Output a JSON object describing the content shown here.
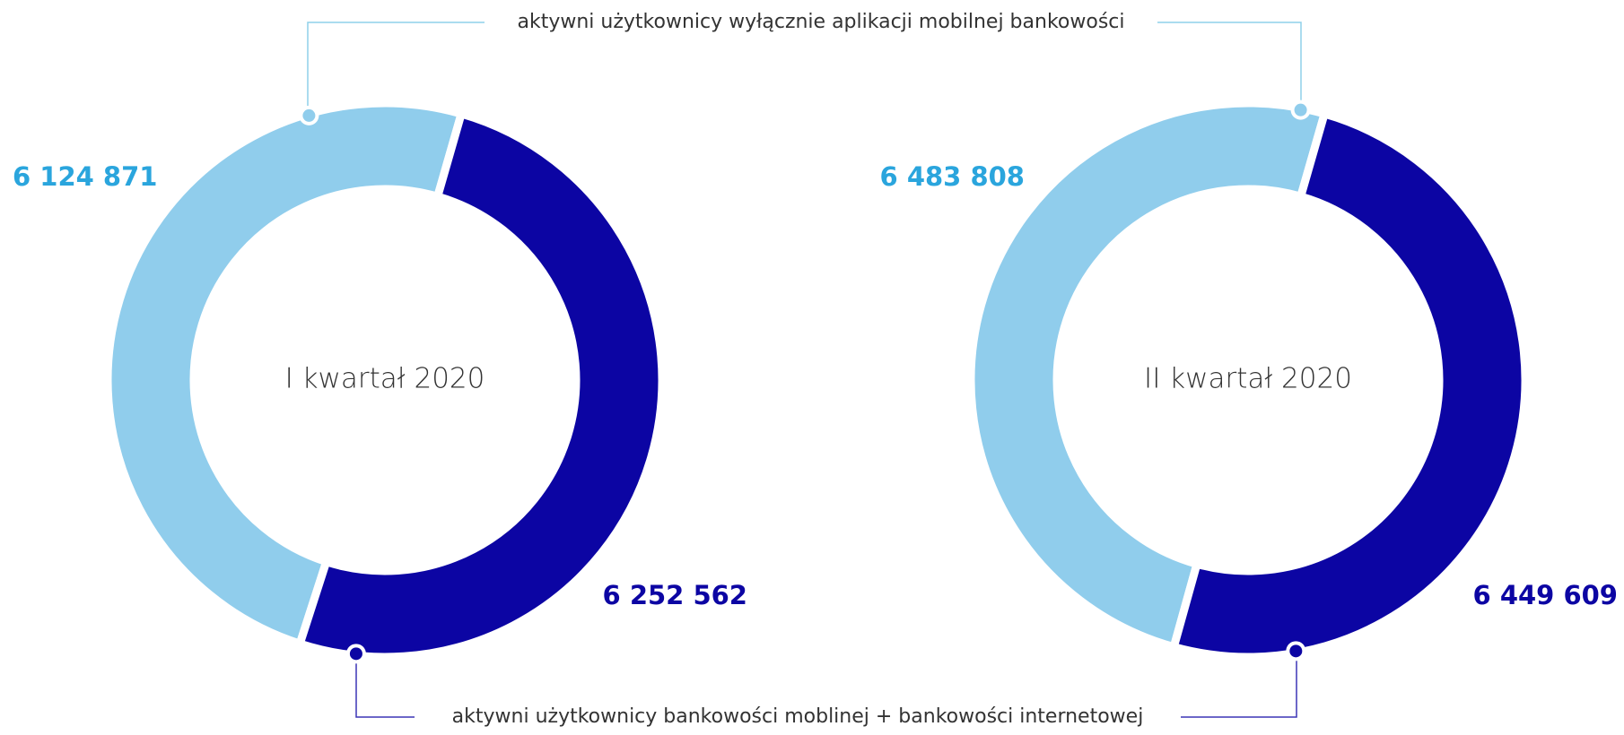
{
  "chart_data": {
    "type": "donut",
    "categories": [
      "aktywni użytkownicy wyłącznie aplikacji mobilnej bankowości",
      "aktywni użytkownicy bankowości moblinej + bankowości internetowej"
    ],
    "colors": [
      "#90cdec",
      "#0c05a3"
    ],
    "series": [
      {
        "name": "I kwartał 2020",
        "values": [
          6124871,
          6252562
        ],
        "value_labels": [
          "6 124 871",
          "6 252 562"
        ]
      },
      {
        "name": "II kwartał 2020",
        "values": [
          6483808,
          6449609
        ],
        "value_labels": [
          "6 483 808",
          "6 449 609"
        ]
      }
    ]
  }
}
